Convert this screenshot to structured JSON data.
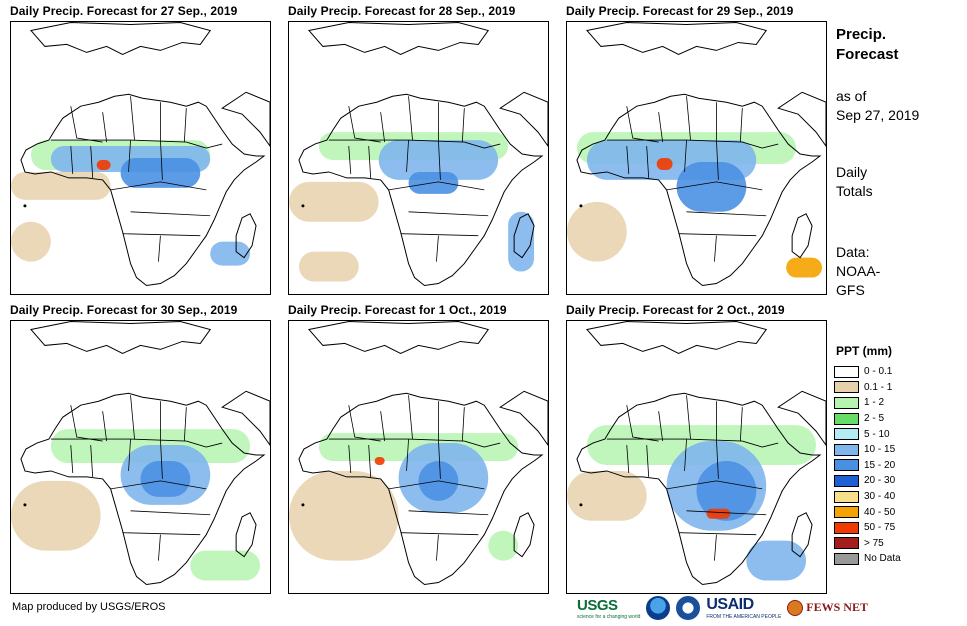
{
  "panels": [
    {
      "title": "Daily Precip. Forecast for 27  Sep., 2019"
    },
    {
      "title": "Daily Precip. Forecast for 28  Sep., 2019"
    },
    {
      "title": "Daily Precip. Forecast for 29  Sep., 2019"
    },
    {
      "title": "Daily Precip. Forecast for 30  Sep., 2019"
    },
    {
      "title": "Daily Precip. Forecast for 1 Oct., 2019"
    },
    {
      "title": "Daily Precip. Forecast for 2 Oct., 2019"
    }
  ],
  "info": {
    "title_line1": "Precip.",
    "title_line2": "Forecast",
    "asof_line1": "as of",
    "asof_line2": "Sep 27, 2019",
    "totals_line1": "Daily",
    "totals_line2": "Totals",
    "data_line1": "Data:",
    "data_line2": "NOAA-",
    "data_line3": "GFS"
  },
  "legend": {
    "title": "PPT (mm)",
    "items": [
      {
        "label": "0 - 0.1",
        "color": "#ffffff"
      },
      {
        "label": "0.1 - 1",
        "color": "#e6d1ab"
      },
      {
        "label": "1 - 2",
        "color": "#b5f5b0"
      },
      {
        "label": "2 - 5",
        "color": "#66dd66"
      },
      {
        "label": "5 - 10",
        "color": "#b3ecf5"
      },
      {
        "label": "10 - 15",
        "color": "#7fb6ec"
      },
      {
        "label": "15 - 20",
        "color": "#4a90e2"
      },
      {
        "label": "20 - 30",
        "color": "#1f5fd6"
      },
      {
        "label": "30 - 40",
        "color": "#f5e08c"
      },
      {
        "label": "40 - 50",
        "color": "#f5a300"
      },
      {
        "label": "50 - 75",
        "color": "#f23a00"
      },
      {
        "label": "> 75",
        "color": "#a51e1e"
      },
      {
        "label": "No Data",
        "color": "#999999"
      }
    ]
  },
  "credit": "Map produced by USGS/EROS",
  "logos": {
    "usgs": "USGS",
    "usgs_sub": "science for a changing world",
    "usaid": "USAID",
    "usaid_sub": "FROM THE AMERICAN PEOPLE",
    "fews": "FEWS NET"
  }
}
